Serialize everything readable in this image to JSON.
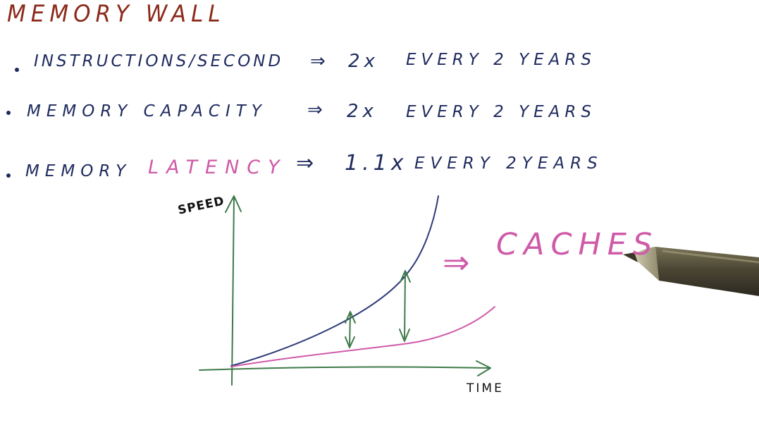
{
  "title": "MEMORY WALL",
  "rows": [
    {
      "label": "INSTRUCTIONS/SECOND",
      "arrow": "⇒",
      "growth": "2x",
      "period": "EVERY 2 YEARS"
    },
    {
      "label": "MEMORY CAPACITY",
      "arrow": "⇒",
      "growth": "2x",
      "period": "EVERY 2 YEARS"
    },
    {
      "label_prefix": "MEMORY",
      "label_highlight": "LATENCY",
      "arrow": "⇒",
      "growth": "1.1x",
      "period": "EVERY 2YEARS"
    }
  ],
  "graph": {
    "y_axis_label": "SPEED",
    "x_axis_label": "TIME",
    "annotation_arrow": "⇒",
    "annotation_text": "CACHES"
  },
  "colors": {
    "title": "#8b2a1a",
    "ink": "#1e2a5e",
    "highlight": "#cf5aa8",
    "axis": "#3f7a4a",
    "processor_curve": "#2e3a7a",
    "memory_curve": "#cf5aa8",
    "gap_arrows": "#3f7a4a"
  },
  "icons": [
    "pen-icon"
  ]
}
